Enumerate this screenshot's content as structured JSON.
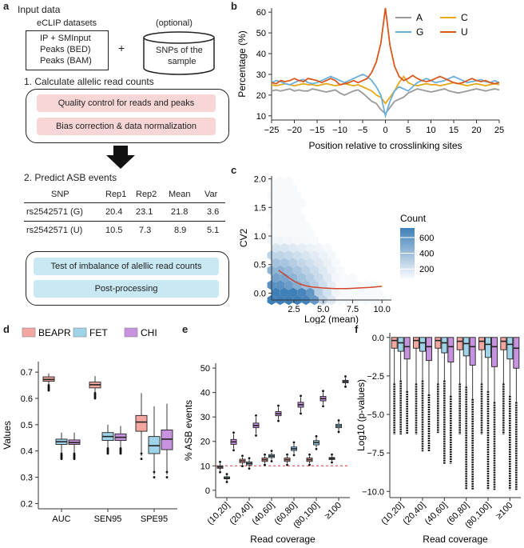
{
  "colors": {
    "red": "#d9581c",
    "blue": "#6ab0dc",
    "orange": "#e6a817",
    "gray": "#999999",
    "beapr": "#f4a6a0",
    "fet": "#9fd3e8",
    "chi": "#c792de",
    "pink_box": "#f7d6d5",
    "cyan_box": "#c8e8f3",
    "hex": "#3f7fb8"
  },
  "panel_a": {
    "label": "a",
    "input_title": "Input data",
    "eclip_title": "eCLIP datasets",
    "eclip_lines": [
      "IP + SMInput",
      "Peaks (BED)",
      "Peaks (BAM)"
    ],
    "plus": "+",
    "optional": "(optional)",
    "snp_lines": [
      "SNPs of the",
      "sample"
    ],
    "step1": "1. Calculate allelic read counts",
    "qc": "Quality control for reads and peaks",
    "bias": "Bias correction & data normalization",
    "step2": "2. Predict ASB events",
    "table": {
      "headers": [
        "SNP",
        "Rep1",
        "Rep2",
        "Mean",
        "Var"
      ],
      "rows": [
        [
          "rs2542571 (G)",
          "20.4",
          "23.1",
          "21.8",
          "3.6"
        ],
        [
          "rs2542571 (U)",
          "10.5",
          "7.3",
          "8.9",
          "5.1"
        ]
      ]
    },
    "test": "Test of imbalance of alellic read counts",
    "post": "Post-processing"
  },
  "chart_data": [
    {
      "panel": "b",
      "type": "line",
      "xlabel": "Position relative to crosslinking sites",
      "ylabel": "Percentage (%)",
      "xlim": [
        -25,
        25
      ],
      "ylim": [
        8,
        62
      ],
      "xticks": [
        -25,
        -20,
        -15,
        -10,
        -5,
        0,
        5,
        10,
        15,
        20,
        25
      ],
      "yticks": [
        10,
        20,
        30,
        40,
        50,
        60
      ],
      "legend": [
        "A",
        "C",
        "G",
        "U"
      ],
      "x": [
        -25,
        -24,
        -23,
        -22,
        -21,
        -20,
        -19,
        -18,
        -17,
        -16,
        -15,
        -14,
        -13,
        -12,
        -11,
        -10,
        -9,
        -8,
        -7,
        -6,
        -5,
        -4,
        -3,
        -2,
        -1,
        0,
        1,
        2,
        3,
        4,
        5,
        6,
        7,
        8,
        9,
        10,
        11,
        12,
        13,
        14,
        15,
        16,
        17,
        18,
        19,
        20,
        21,
        22,
        23,
        24,
        25
      ],
      "series": [
        {
          "name": "A",
          "values": [
            22,
            22.5,
            22,
            22.5,
            23,
            22,
            22.5,
            22,
            22,
            23,
            22.5,
            22,
            21.5,
            22,
            22.5,
            21,
            20,
            21,
            22,
            22.5,
            21,
            19,
            17,
            16,
            13,
            11,
            14,
            17,
            18,
            19,
            21,
            22,
            23,
            22.5,
            22,
            21.5,
            22,
            22.5,
            23,
            22,
            21.5,
            21,
            21.5,
            22,
            22.5,
            23,
            22.5,
            22,
            22.5,
            23,
            22.5
          ]
        },
        {
          "name": "C",
          "values": [
            25,
            24.5,
            25,
            25.5,
            25,
            24.5,
            25,
            25.5,
            25,
            25,
            24.5,
            25,
            25.5,
            25,
            24.5,
            25,
            25.5,
            25,
            24.5,
            25,
            24,
            23,
            22,
            20,
            19,
            16,
            19,
            22,
            26,
            29,
            26,
            25,
            24.5,
            25,
            25.5,
            25,
            25,
            24.5,
            25,
            25.5,
            26,
            25.5,
            25,
            24.5,
            25,
            25.5,
            25,
            24.5,
            25,
            25.5,
            25
          ]
        },
        {
          "name": "G",
          "values": [
            26,
            27,
            26.5,
            25.5,
            25,
            26,
            27,
            27.5,
            26,
            25.5,
            26,
            27,
            28,
            29,
            28,
            27,
            26,
            27,
            28,
            29,
            30,
            29,
            27,
            24,
            20,
            10,
            17,
            22,
            24,
            23,
            22,
            24,
            26,
            27,
            28,
            27,
            26,
            26.5,
            27,
            28,
            29,
            28,
            27,
            26,
            26.5,
            27,
            27.5,
            26.5,
            26,
            27,
            26
          ]
        },
        {
          "name": "U",
          "values": [
            26,
            25.5,
            27,
            26.5,
            27,
            28,
            27,
            26.5,
            28,
            27.5,
            27,
            26,
            27,
            28,
            27,
            25,
            25.5,
            26,
            27,
            26,
            27,
            28,
            31,
            36,
            45,
            62,
            44,
            34,
            29,
            27,
            28,
            29.5,
            28,
            27,
            26.5,
            27,
            28,
            29,
            28,
            27,
            26,
            25.5,
            26,
            27,
            28,
            27,
            26.5,
            27,
            26,
            25.5,
            26
          ]
        }
      ]
    },
    {
      "panel": "c",
      "type": "hexbin",
      "xlabel": "Log2 (mean)",
      "ylabel": "CV2",
      "xlim": [
        0.6,
        10.8
      ],
      "ylim": [
        -0.12,
        2.05
      ],
      "xticks": [
        2.5,
        5.0,
        7.5,
        10.0
      ],
      "yticks": [
        0.0,
        0.5,
        1.0,
        1.5,
        2.0
      ],
      "legend_title": "Count",
      "legend_ticks": [
        200,
        400,
        600
      ],
      "trend_x": [
        1.2,
        1.6,
        2.0,
        2.5,
        3.0,
        3.5,
        4.0,
        5.0,
        6.0,
        7.0,
        8.0,
        9.0,
        10.0
      ],
      "trend_y": [
        0.4,
        0.34,
        0.28,
        0.21,
        0.16,
        0.13,
        0.11,
        0.09,
        0.08,
        0.08,
        0.09,
        0.1,
        0.12
      ]
    },
    {
      "panel": "d",
      "type": "box",
      "ylabel": "Values",
      "categories": [
        "AUC",
        "SEN95",
        "SPE95"
      ],
      "ylim": [
        0.18,
        0.74
      ],
      "yticks": [
        0.2,
        0.3,
        0.4,
        0.5,
        0.6,
        0.7
      ],
      "legend": [
        "BEAPR",
        "FET",
        "CHI"
      ],
      "boxes": [
        [
          [
            0.65,
            0.665,
            0.672,
            0.682,
            0.695
          ],
          [
            0.39,
            0.425,
            0.435,
            0.445,
            0.47
          ],
          [
            0.39,
            0.425,
            0.432,
            0.442,
            0.47
          ]
        ],
        [
          [
            0.62,
            0.64,
            0.652,
            0.662,
            0.685
          ],
          [
            0.41,
            0.44,
            0.455,
            0.47,
            0.5
          ],
          [
            0.41,
            0.44,
            0.452,
            0.465,
            0.495
          ]
        ],
        [
          [
            0.38,
            0.475,
            0.51,
            0.535,
            0.62
          ],
          [
            0.31,
            0.39,
            0.42,
            0.455,
            0.57
          ],
          [
            0.31,
            0.405,
            0.445,
            0.48,
            0.58
          ]
        ]
      ]
    },
    {
      "panel": "e",
      "type": "box",
      "xlabel": "Read coverage",
      "ylabel": "% ASB events",
      "categories": [
        "(10,20]",
        "(20,40]",
        "(40,60]",
        "(60,80]",
        "(80,100]",
        "≥100"
      ],
      "ylim": [
        -3,
        52
      ],
      "yticks": [
        0,
        10,
        20,
        30,
        40,
        50
      ],
      "reference_line": 10,
      "boxes": [
        [
          [
            8,
            9,
            9.5,
            10,
            11
          ],
          [
            4,
            4.7,
            5,
            5.5,
            6
          ],
          [
            17,
            18.8,
            19.8,
            20.8,
            23
          ]
        ],
        [
          [
            10.5,
            11.3,
            12,
            12.7,
            13.5
          ],
          [
            9.5,
            10.4,
            11,
            11.6,
            12.5
          ],
          [
            23,
            25.6,
            26.5,
            27.5,
            30
          ]
        ],
        [
          [
            11,
            11.8,
            12.5,
            13.2,
            14
          ],
          [
            12.5,
            13.4,
            14,
            14.6,
            15.5
          ],
          [
            29,
            30.5,
            31.3,
            32.2,
            34
          ]
        ],
        [
          [
            11,
            11.8,
            12.5,
            13.2,
            14
          ],
          [
            15,
            16.3,
            17,
            17.7,
            19
          ],
          [
            32,
            34,
            35,
            36,
            38
          ]
        ],
        [
          [
            11,
            11.8,
            12.5,
            13.2,
            14
          ],
          [
            17.5,
            18.6,
            19.5,
            20.3,
            21.5
          ],
          [
            35,
            36.6,
            37.5,
            38.4,
            40
          ]
        ],
        [
          [
            12,
            12.6,
            13,
            13.4,
            14
          ],
          [
            24.5,
            25.6,
            26.3,
            27,
            28
          ],
          [
            43,
            44,
            44.5,
            45,
            46
          ]
        ]
      ]
    },
    {
      "panel": "f",
      "type": "box",
      "xlabel": "Read coverage",
      "ylabel": "Log10 (p-values)",
      "categories": [
        "(10,20]",
        "(20,40]",
        "(40,60]",
        "(60,80]",
        "(80,100]",
        "≥100"
      ],
      "ylim": [
        -10.4,
        0.3
      ],
      "yticks": [
        0.0,
        -2.5,
        -5.0,
        -7.5,
        -10.0
      ],
      "boxes": [
        [
          [
            -3.0,
            -0.7,
            -0.2,
            0,
            0
          ],
          [
            -2.8,
            -0.9,
            -0.35,
            0,
            0
          ],
          [
            -3.5,
            -1.4,
            -0.6,
            0,
            0
          ]
        ],
        [
          [
            -3.0,
            -0.7,
            -0.2,
            0,
            0
          ],
          [
            -2.8,
            -0.9,
            -0.35,
            0,
            0
          ],
          [
            -3.7,
            -1.5,
            -0.6,
            0,
            0
          ]
        ],
        [
          [
            -3.0,
            -0.7,
            -0.2,
            0,
            0
          ],
          [
            -2.8,
            -1.0,
            -0.35,
            0,
            0
          ],
          [
            -3.8,
            -1.6,
            -0.6,
            0,
            0
          ]
        ],
        [
          [
            -3.0,
            -0.8,
            -0.25,
            0,
            0
          ],
          [
            -3.2,
            -1.2,
            -0.4,
            0,
            0
          ],
          [
            -4.0,
            -1.8,
            -0.6,
            0,
            0
          ]
        ],
        [
          [
            -3.0,
            -0.8,
            -0.25,
            0,
            0
          ],
          [
            -3.5,
            -1.3,
            -0.45,
            0,
            0
          ],
          [
            -4.2,
            -1.9,
            -0.6,
            0,
            0
          ]
        ],
        [
          [
            -3.0,
            -0.8,
            -0.25,
            0,
            0
          ],
          [
            -3.8,
            -1.4,
            -0.45,
            0,
            0
          ],
          [
            -4.2,
            -2.0,
            -0.7,
            0,
            0
          ]
        ]
      ],
      "outlier_low": [
        -6.3,
        -7.4,
        -8.2,
        -9.9,
        -9.9,
        -9.9
      ]
    }
  ],
  "labels": {
    "b": "b",
    "c": "c",
    "d": "d",
    "e": "e",
    "f": "f"
  }
}
